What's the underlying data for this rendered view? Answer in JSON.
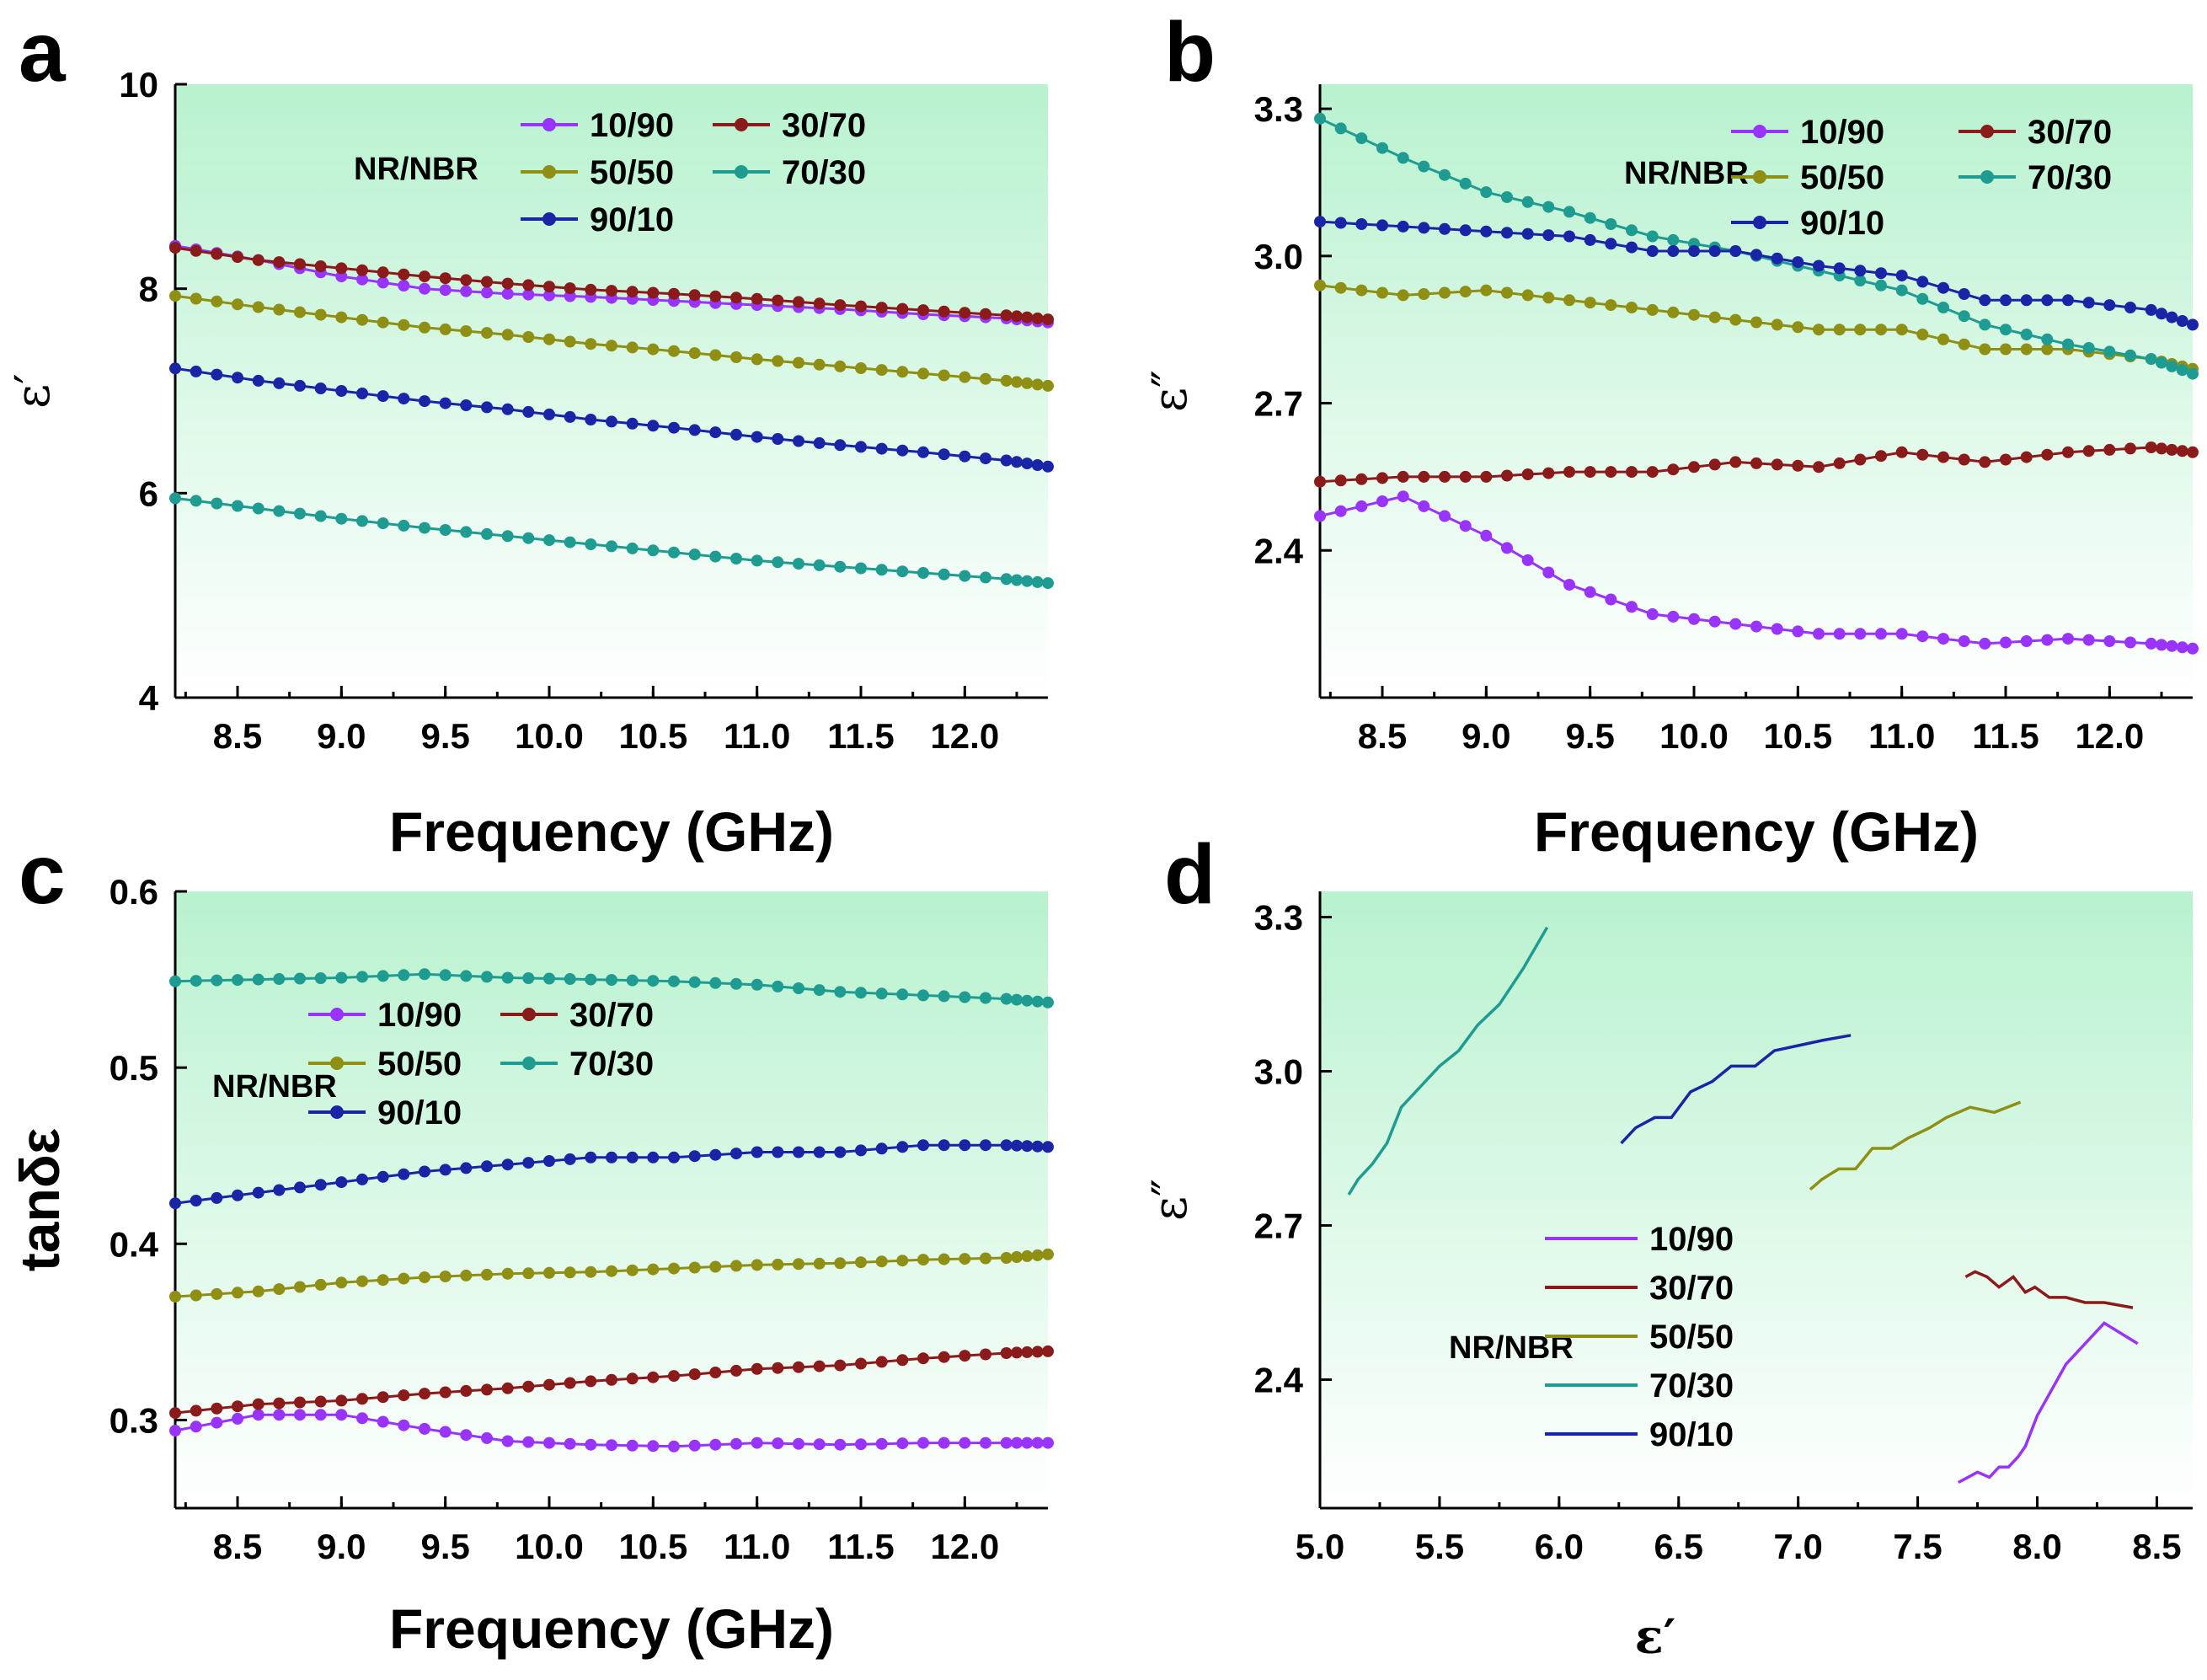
{
  "figure": {
    "label_NR": "NR/NBR",
    "series_labels": [
      "10/90",
      "30/70",
      "50/50",
      "70/30",
      "90/10"
    ],
    "series_colors": [
      "#9933ff",
      "#8b1a1a",
      "#8f8f14",
      "#1f9c92",
      "#1a24a6"
    ],
    "background_gradient": [
      "#b8f2cf",
      "#ffffff"
    ]
  },
  "chart_data": [
    {
      "panel": "a",
      "type": "line",
      "title": "",
      "xlabel": "Frequency (GHz)",
      "ylabel": "ε′",
      "xlim": [
        8.2,
        12.4
      ],
      "ylim": [
        4,
        10
      ],
      "xticks": [
        "8.5",
        "9.0",
        "9.5",
        "10.0",
        "10.5",
        "11.0",
        "11.5",
        "12.0"
      ],
      "yticks": [
        "4",
        "6",
        "8",
        "10"
      ],
      "x": [
        8.2,
        8.6,
        9.0,
        9.4,
        9.8,
        10.2,
        10.6,
        11.0,
        11.4,
        11.8,
        12.2,
        12.4
      ],
      "series": [
        {
          "name": "10/90",
          "values": [
            8.42,
            8.28,
            8.12,
            8.0,
            7.95,
            7.92,
            7.88,
            7.84,
            7.8,
            7.75,
            7.71,
            7.67
          ]
        },
        {
          "name": "30/70",
          "values": [
            8.4,
            8.28,
            8.2,
            8.12,
            8.05,
            7.99,
            7.95,
            7.9,
            7.84,
            7.79,
            7.74,
            7.7
          ]
        },
        {
          "name": "50/50",
          "values": [
            7.93,
            7.82,
            7.72,
            7.62,
            7.55,
            7.46,
            7.39,
            7.31,
            7.24,
            7.17,
            7.1,
            7.05
          ]
        },
        {
          "name": "70/30",
          "values": [
            5.95,
            5.85,
            5.75,
            5.66,
            5.58,
            5.5,
            5.42,
            5.34,
            5.28,
            5.22,
            5.16,
            5.12
          ]
        },
        {
          "name": "90/10",
          "values": [
            7.22,
            7.1,
            7.0,
            6.9,
            6.82,
            6.72,
            6.64,
            6.55,
            6.47,
            6.4,
            6.32,
            6.26
          ]
        }
      ],
      "legend": "top-right",
      "label": "NR/NBR"
    },
    {
      "panel": "b",
      "type": "line",
      "title": "",
      "xlabel": "Frequency (GHz)",
      "ylabel": "ε″",
      "xlim": [
        8.2,
        12.4
      ],
      "ylim": [
        2.1,
        3.35
      ],
      "xticks": [
        "8.5",
        "9.0",
        "9.5",
        "10.0",
        "10.5",
        "11.0",
        "11.5",
        "12.0"
      ],
      "yticks": [
        "2.4",
        "2.7",
        "3.0",
        "3.3"
      ],
      "x": [
        8.2,
        8.6,
        9.0,
        9.4,
        9.8,
        10.2,
        10.6,
        11.0,
        11.4,
        11.8,
        12.2,
        12.4
      ],
      "series": [
        {
          "name": "10/90",
          "values": [
            2.47,
            2.51,
            2.43,
            2.33,
            2.27,
            2.25,
            2.23,
            2.23,
            2.21,
            2.22,
            2.21,
            2.2
          ]
        },
        {
          "name": "30/70",
          "values": [
            2.54,
            2.55,
            2.55,
            2.56,
            2.56,
            2.58,
            2.57,
            2.6,
            2.58,
            2.6,
            2.61,
            2.6
          ]
        },
        {
          "name": "50/50",
          "values": [
            2.94,
            2.92,
            2.93,
            2.91,
            2.89,
            2.87,
            2.85,
            2.85,
            2.81,
            2.81,
            2.79,
            2.77
          ]
        },
        {
          "name": "70/30",
          "values": [
            3.28,
            3.2,
            3.13,
            3.09,
            3.04,
            3.01,
            2.97,
            2.93,
            2.86,
            2.82,
            2.79,
            2.76
          ]
        },
        {
          "name": "90/10",
          "values": [
            3.07,
            3.06,
            3.05,
            3.04,
            3.01,
            3.01,
            2.98,
            2.96,
            2.91,
            2.91,
            2.89,
            2.86
          ]
        }
      ],
      "legend": "top-right",
      "label": "NR/NBR"
    },
    {
      "panel": "c",
      "type": "line",
      "title": "",
      "xlabel": "Frequency (GHz)",
      "ylabel": "tanδε",
      "xlim": [
        8.2,
        12.4
      ],
      "ylim": [
        0.25,
        0.6
      ],
      "xticks": [
        "8.5",
        "9.0",
        "9.5",
        "10.0",
        "10.5",
        "11.0",
        "11.5",
        "12.0"
      ],
      "yticks": [
        "0.3",
        "0.4",
        "0.5",
        "0.6"
      ],
      "x": [
        8.2,
        8.6,
        9.0,
        9.4,
        9.8,
        10.2,
        10.6,
        11.0,
        11.4,
        11.8,
        12.2,
        12.4
      ],
      "series": [
        {
          "name": "10/90",
          "values": [
            0.294,
            0.303,
            0.303,
            0.295,
            0.288,
            0.286,
            0.285,
            0.287,
            0.286,
            0.287,
            0.287,
            0.287
          ]
        },
        {
          "name": "30/70",
          "values": [
            0.304,
            0.309,
            0.311,
            0.315,
            0.318,
            0.322,
            0.325,
            0.329,
            0.331,
            0.335,
            0.338,
            0.339
          ]
        },
        {
          "name": "50/50",
          "values": [
            0.37,
            0.373,
            0.378,
            0.381,
            0.383,
            0.384,
            0.386,
            0.388,
            0.389,
            0.391,
            0.392,
            0.394
          ]
        },
        {
          "name": "70/30",
          "values": [
            0.549,
            0.55,
            0.551,
            0.553,
            0.551,
            0.55,
            0.549,
            0.547,
            0.543,
            0.541,
            0.539,
            0.537
          ]
        },
        {
          "name": "90/10",
          "values": [
            0.423,
            0.429,
            0.435,
            0.441,
            0.445,
            0.449,
            0.449,
            0.452,
            0.452,
            0.456,
            0.456,
            0.455
          ]
        }
      ],
      "legend": "center",
      "label": "NR/NBR"
    },
    {
      "panel": "d",
      "type": "line",
      "title": "",
      "xlabel": "ε′",
      "ylabel": "ε″",
      "xlim": [
        5.0,
        8.65
      ],
      "ylim": [
        2.15,
        3.35
      ],
      "xticks": [
        "5.0",
        "5.5",
        "6.0",
        "6.5",
        "7.0",
        "7.5",
        "8.0",
        "8.5"
      ],
      "yticks": [
        "2.4",
        "2.7",
        "3.0",
        "3.3"
      ],
      "series": [
        {
          "name": "10/90",
          "x": [
            7.67,
            7.71,
            7.75,
            7.8,
            7.84,
            7.88,
            7.92,
            7.95,
            8.0,
            8.12,
            8.28,
            8.42
          ],
          "y": [
            2.2,
            2.21,
            2.22,
            2.21,
            2.23,
            2.23,
            2.25,
            2.27,
            2.33,
            2.43,
            2.51,
            2.47
          ]
        },
        {
          "name": "30/70",
          "x": [
            7.7,
            7.74,
            7.79,
            7.84,
            7.9,
            7.95,
            7.99,
            8.05,
            8.12,
            8.2,
            8.28,
            8.4
          ],
          "y": [
            2.6,
            2.61,
            2.6,
            2.58,
            2.6,
            2.57,
            2.58,
            2.56,
            2.56,
            2.55,
            2.55,
            2.54
          ]
        },
        {
          "name": "50/50",
          "x": [
            7.05,
            7.1,
            7.17,
            7.24,
            7.31,
            7.39,
            7.46,
            7.55,
            7.62,
            7.72,
            7.82,
            7.93
          ],
          "y": [
            2.77,
            2.79,
            2.81,
            2.81,
            2.85,
            2.85,
            2.87,
            2.89,
            2.91,
            2.93,
            2.92,
            2.94
          ]
        },
        {
          "name": "70/30",
          "x": [
            5.12,
            5.16,
            5.22,
            5.28,
            5.34,
            5.42,
            5.5,
            5.58,
            5.66,
            5.75,
            5.85,
            5.95
          ],
          "y": [
            2.76,
            2.79,
            2.82,
            2.86,
            2.93,
            2.97,
            3.01,
            3.04,
            3.09,
            3.13,
            3.2,
            3.28
          ]
        },
        {
          "name": "90/10",
          "x": [
            6.26,
            6.32,
            6.4,
            6.47,
            6.55,
            6.64,
            6.72,
            6.82,
            6.9,
            7.0,
            7.1,
            7.22
          ],
          "y": [
            2.86,
            2.89,
            2.91,
            2.91,
            2.96,
            2.98,
            3.01,
            3.01,
            3.04,
            3.05,
            3.06,
            3.07
          ]
        }
      ],
      "legend": "bottom-center",
      "label": "NR/NBR"
    }
  ]
}
